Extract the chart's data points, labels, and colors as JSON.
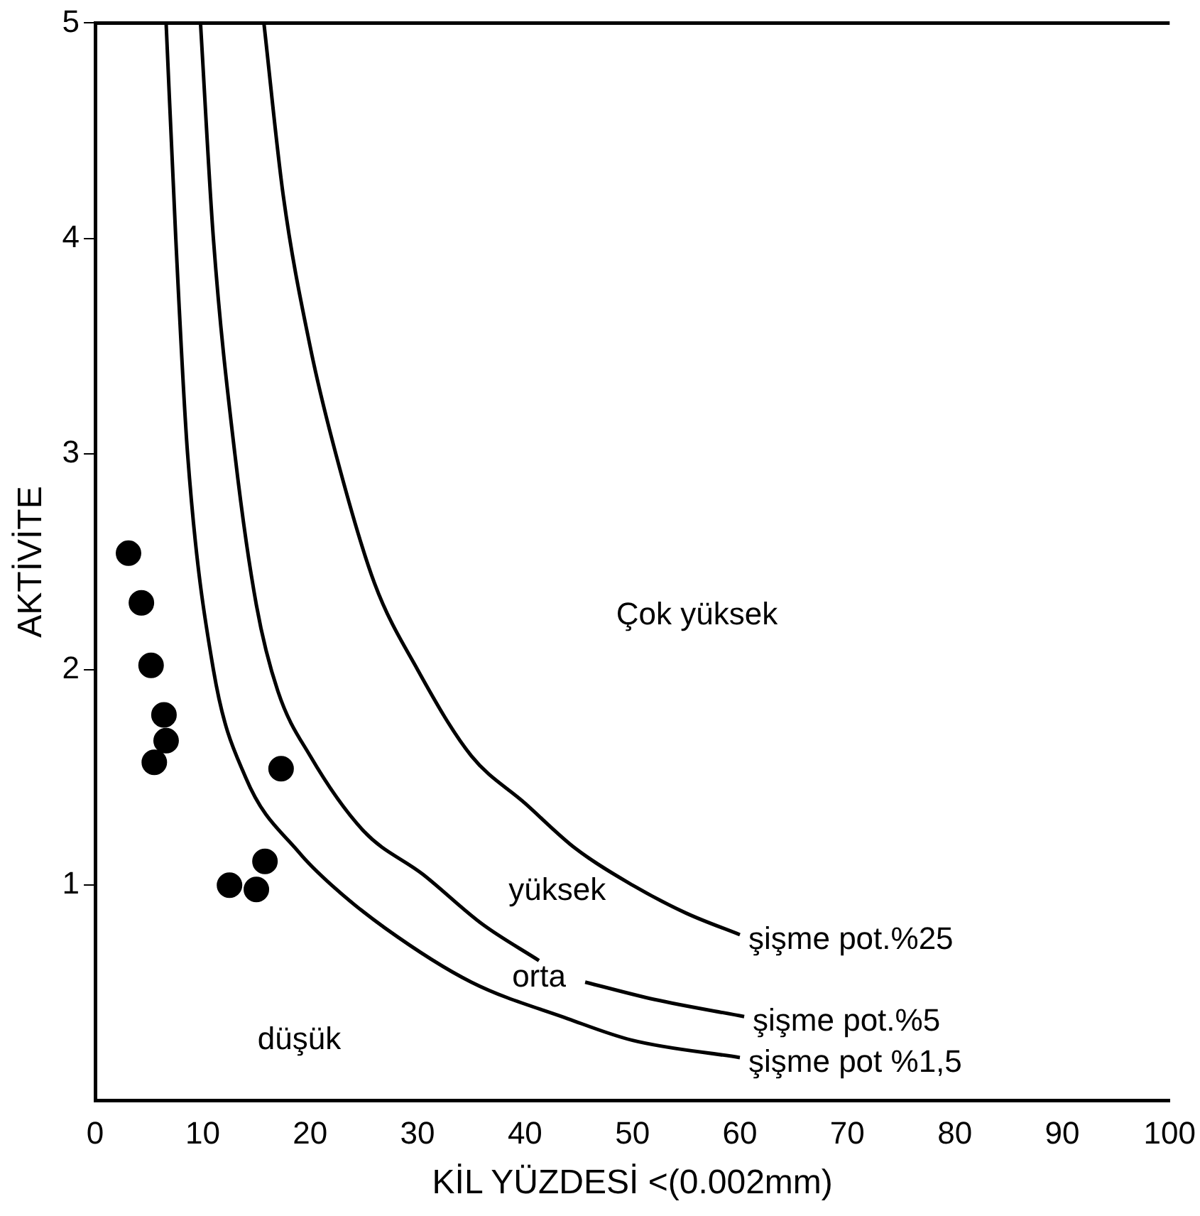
{
  "chart_data": {
    "type": "line",
    "xlabel": "KİL YÜZDESİ <(0.002mm)",
    "ylabel": "AKTİVİTE",
    "xlim": [
      0,
      100
    ],
    "xticks": [
      0,
      10,
      20,
      30,
      40,
      50,
      60,
      70,
      80,
      90,
      100
    ],
    "ylim": [
      0,
      5
    ],
    "yticks": [
      1,
      2,
      3,
      4,
      5
    ],
    "series": [
      {
        "name": "şişme pot.%25",
        "color": "#000000",
        "x": [
          15.7,
          17.5,
          20,
          22.4,
          26,
          30,
          35,
          40,
          44.7,
          50,
          55,
          60
        ],
        "values": [
          5,
          4.2,
          3.5,
          3,
          2.4,
          2,
          1.6,
          1.38,
          1.17,
          1,
          0.87,
          0.77
        ]
      },
      {
        "name": "şişme pot.%5",
        "color": "#000000",
        "x": [
          9.8,
          11,
          13,
          15,
          17,
          20,
          25,
          30.5,
          36,
          41.3,
          43,
          45.6,
          52,
          60.4
        ],
        "values": [
          5,
          4,
          3,
          2.3,
          1.9,
          1.6,
          1.25,
          1.05,
          0.82,
          0.65,
          null,
          0.55,
          0.47,
          0.39
        ]
      },
      {
        "name": "şişme pot %1,5",
        "color": "#000000",
        "x": [
          6.6,
          7.5,
          8.6,
          11,
          14,
          19,
          22,
          27,
          35,
          44,
          50,
          60
        ],
        "values": [
          5,
          4,
          3,
          2,
          1.5,
          1.15,
          1,
          0.8,
          0.55,
          0.38,
          0.28,
          0.2
        ]
      },
      {
        "type": "scatter",
        "color": "#000000",
        "x": [
          3.1,
          4.3,
          5.2,
          6.4,
          6.6,
          5.5,
          17.3,
          15.8,
          12.5,
          15
        ],
        "values": [
          2.54,
          2.31,
          2.02,
          1.79,
          1.67,
          1.57,
          1.54,
          1.11,
          1,
          0.98
        ]
      }
    ],
    "annotations": [
      "Çok yüksek",
      "yüksek",
      "orta",
      "düşük"
    ]
  }
}
